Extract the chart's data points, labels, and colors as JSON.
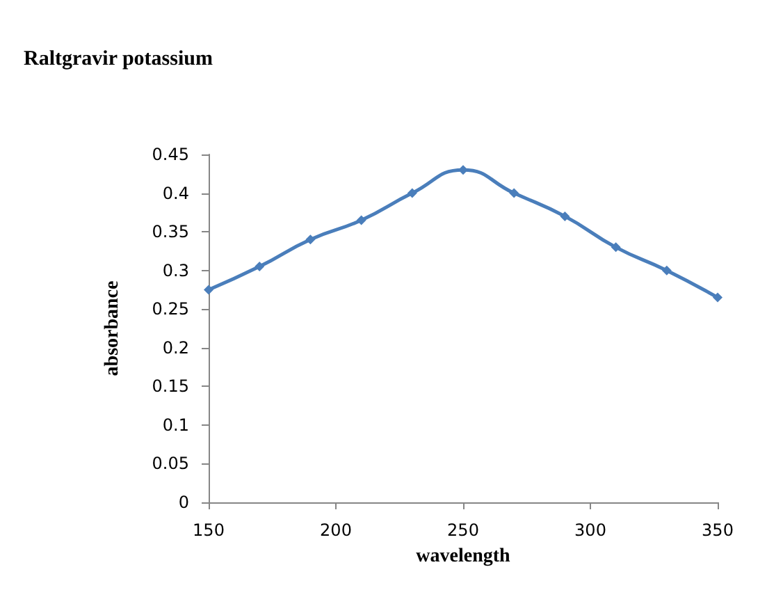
{
  "chart_data": {
    "type": "line",
    "title": "Raltgravir potassium",
    "xlabel": "wavelength",
    "ylabel": "absorbance",
    "x": [
      150,
      170,
      190,
      210,
      230,
      250,
      270,
      290,
      310,
      330,
      350
    ],
    "series": [
      {
        "color": "#4a7ebb",
        "values": [
          0.275,
          0.305,
          0.34,
          0.365,
          0.4,
          0.43,
          0.4,
          0.37,
          0.33,
          0.3,
          0.265
        ]
      }
    ],
    "xlim": [
      150,
      350
    ],
    "xticks": [
      150,
      200,
      250,
      300,
      350
    ],
    "ylim": [
      0,
      0.45
    ],
    "yticks": [
      0,
      0.05,
      0.1,
      0.15,
      0.2,
      0.25,
      0.3,
      0.35,
      0.4,
      0.45
    ],
    "grid": false,
    "marker": "diamond",
    "line_style": "solid"
  }
}
